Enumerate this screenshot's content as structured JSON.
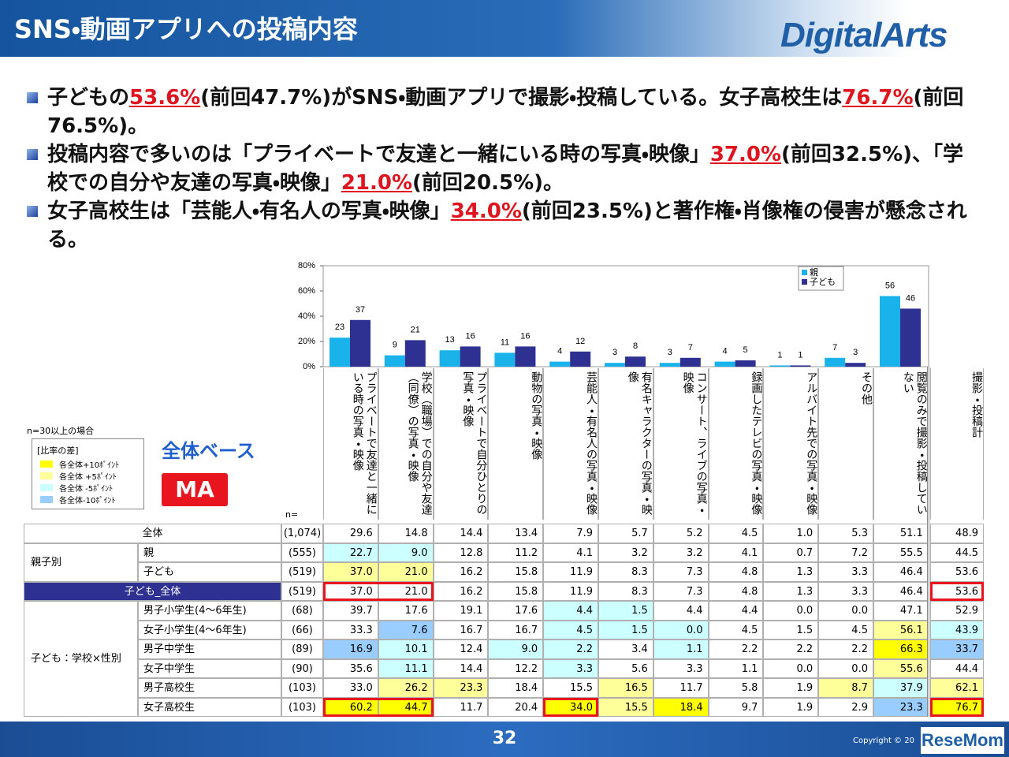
{
  "header": {
    "title": "SNS・動画アプリへの投稿内容",
    "logo": "DigitalArts"
  },
  "bullets": [
    [
      {
        "text": "子どもの"
      },
      {
        "text": "53.6%",
        "red": true
      },
      {
        "text": "(前回47.7%)がSNS・動画アプリで撮影・投稿している。女子高校生は"
      },
      {
        "text": "76.7%",
        "red": true
      },
      {
        "text": "(前回76.5%)。"
      }
    ],
    [
      {
        "text": "投稿内容で多いのは「プライベートで友達と一緒にいる時の写真・映像」"
      },
      {
        "text": "37.0%",
        "red": true
      },
      {
        "text": "(前回32.5%)、「学校での自分や友達の写真・映像」"
      },
      {
        "text": "21.0%",
        "red": true
      },
      {
        "text": "(前回20.5%)。"
      }
    ],
    [
      {
        "text": "女子高校生は「芸能人・有名人の写真・映像」"
      },
      {
        "text": "34.0%",
        "red": true
      },
      {
        "text": "(前回23.5%)と著作権・肖像権の侵害が懸念される。"
      }
    ]
  ],
  "chart_data": {
    "type": "bar",
    "categories": [
      "プライベートで友達と一緒にいる時の写真・映像",
      "学校（職場）での自分や友達（同僚）の写真・映像",
      "プライベートで自分ひとりの写真・映像",
      "動物の写真・映像",
      "芸能人・有名人の写真・映像",
      "有名キャラクターの写真・映像",
      "コンサート、ライブの写真・映像",
      "録画したテレビの写真・映像",
      "アルバイト先での写真・映像",
      "その他",
      "閲覧のみで撮影・投稿していない"
    ],
    "series": [
      {
        "name": "親",
        "color": "#1ab2ea",
        "values": [
          23,
          9,
          13,
          11,
          4,
          3,
          3,
          4,
          1,
          7,
          56
        ]
      },
      {
        "name": "子ども",
        "color": "#2e3192",
        "values": [
          37,
          21,
          16,
          16,
          12,
          8,
          7,
          5,
          1,
          3,
          46
        ]
      }
    ],
    "ylim": [
      0,
      80
    ],
    "yticks": [
      {
        "value": 0,
        "label": "0%"
      },
      {
        "value": 20,
        "label": "20%"
      },
      {
        "value": 40,
        "label": "40%"
      },
      {
        "value": 60,
        "label": "60%"
      },
      {
        "value": 80,
        "label": "80%"
      }
    ],
    "grid": false,
    "legend": "upper right"
  },
  "notes": {
    "sample": "n=30以上の場合",
    "legend_title": "[比率の差]",
    "legend": [
      {
        "label": "各全体+10ﾎﾟｲﾝﾄ",
        "color": "#ffff00"
      },
      {
        "label": "各全体 +5ﾎﾟｲﾝﾄ",
        "color": "#ffff99"
      },
      {
        "label": "各全体 -5ﾎﾟｲﾝﾄ",
        "color": "#ccffff"
      },
      {
        "label": "各全体-10ﾎﾟｲﾝﾄ",
        "color": "#99ccff"
      }
    ],
    "base": "全体ベース",
    "ma": "MA",
    "n_label": "n="
  },
  "table": {
    "total_column": "撮影・投稿計",
    "sections": [
      {
        "label": "全体",
        "n": "(1,074)",
        "values": [
          "29.6",
          "14.8",
          "14.4",
          "13.4",
          "7.9",
          "5.7",
          "5.2",
          "4.5",
          "1.0",
          "5.3",
          "51.1",
          "48.9"
        ]
      },
      {
        "label": "親子別",
        "rows": [
          {
            "label": "親",
            "n": "(555)",
            "values": [
              "22.7",
              "9.0",
              "12.8",
              "11.2",
              "4.1",
              "3.2",
              "3.2",
              "4.1",
              "0.7",
              "7.2",
              "55.5",
              "44.5"
            ],
            "shade": [
              "#ccffff",
              "#ccffff",
              null,
              null,
              null,
              null,
              null,
              null,
              null,
              null,
              null,
              null
            ]
          },
          {
            "label": "子ども",
            "n": "(519)",
            "values": [
              "37.0",
              "21.0",
              "16.2",
              "15.8",
              "11.9",
              "8.3",
              "7.3",
              "4.8",
              "1.3",
              "3.3",
              "46.4",
              "53.6"
            ],
            "shade": [
              "#ffff99",
              "#ffff99",
              null,
              null,
              null,
              null,
              null,
              null,
              null,
              null,
              null,
              null
            ]
          }
        ]
      },
      {
        "label": "子ども_全体",
        "fill": "#2e3192",
        "n": "(519)",
        "values": [
          "37.0",
          "21.0",
          "16.2",
          "15.8",
          "11.9",
          "8.3",
          "7.3",
          "4.8",
          "1.3",
          "3.3",
          "46.4",
          "53.6"
        ],
        "boxed": [
          0,
          1,
          11
        ]
      },
      {
        "label": "子ども：学校×性別",
        "rows": [
          {
            "label": "男子小学生(4～6年生)",
            "n": "(68)",
            "values": [
              "39.7",
              "17.6",
              "19.1",
              "17.6",
              "4.4",
              "1.5",
              "4.4",
              "4.4",
              "0.0",
              "0.0",
              "47.1",
              "52.9"
            ],
            "shade": [
              null,
              null,
              null,
              null,
              "#ccffff",
              "#ccffff",
              null,
              null,
              null,
              null,
              null,
              null
            ]
          },
          {
            "label": "女子小学生(4～6年生)",
            "n": "(66)",
            "values": [
              "33.3",
              "7.6",
              "16.7",
              "16.7",
              "4.5",
              "1.5",
              "0.0",
              "4.5",
              "1.5",
              "4.5",
              "56.1",
              "43.9"
            ],
            "shade": [
              null,
              "#99ccff",
              null,
              null,
              "#ccffff",
              "#ccffff",
              "#ccffff",
              null,
              null,
              null,
              "#ffff99",
              "#ccffff"
            ]
          },
          {
            "label": "男子中学生",
            "n": "(89)",
            "values": [
              "16.9",
              "10.1",
              "12.4",
              "9.0",
              "2.2",
              "3.4",
              "1.1",
              "2.2",
              "2.2",
              "2.2",
              "66.3",
              "33.7"
            ],
            "shade": [
              "#99ccff",
              "#ccffff",
              null,
              "#ccffff",
              "#ccffff",
              null,
              "#ccffff",
              null,
              null,
              null,
              "#ffff00",
              "#99ccff"
            ]
          },
          {
            "label": "女子中学生",
            "n": "(90)",
            "values": [
              "35.6",
              "11.1",
              "14.4",
              "12.2",
              "3.3",
              "5.6",
              "3.3",
              "1.1",
              "0.0",
              "0.0",
              "55.6",
              "44.4"
            ],
            "shade": [
              null,
              "#ccffff",
              null,
              null,
              "#ccffff",
              null,
              null,
              null,
              null,
              null,
              "#ffff99",
              null
            ]
          },
          {
            "label": "男子高校生",
            "n": "(103)",
            "values": [
              "33.0",
              "26.2",
              "23.3",
              "18.4",
              "15.5",
              "16.5",
              "11.7",
              "5.8",
              "1.9",
              "8.7",
              "37.9",
              "62.1"
            ],
            "shade": [
              null,
              "#ffff99",
              "#ffff99",
              null,
              null,
              "#ffff99",
              null,
              null,
              null,
              "#ffff99",
              "#ccffff",
              "#ffff99"
            ]
          },
          {
            "label": "女子高校生",
            "n": "(103)",
            "values": [
              "60.2",
              "44.7",
              "11.7",
              "20.4",
              "34.0",
              "15.5",
              "18.4",
              "9.7",
              "1.9",
              "2.9",
              "23.3",
              "76.7"
            ],
            "shade": [
              "#ffff00",
              "#ffff00",
              null,
              null,
              "#ffff00",
              "#ffff99",
              "#ffff00",
              null,
              null,
              null,
              "#99ccff",
              "#ffff00"
            ],
            "boxed": [
              0,
              1,
              4,
              11
            ]
          }
        ]
      }
    ]
  },
  "footer": {
    "page": "32",
    "copyright": "Copyright © 20",
    "watermark": "ReseMom"
  }
}
